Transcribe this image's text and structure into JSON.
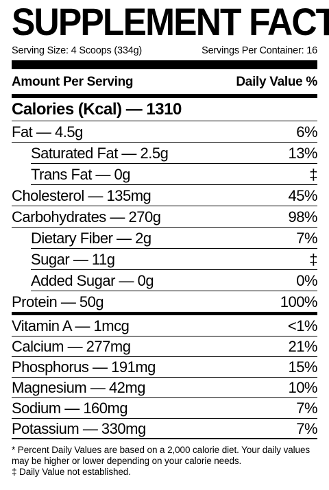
{
  "title": "SUPPLEMENT FACTS",
  "serving_size": "Serving Size: 4 Scoops (334g)",
  "servings_per_container": "Servings Per Container: 16",
  "header": {
    "amount": "Amount Per Serving",
    "daily_value": "Daily Value %"
  },
  "calories": "Calories (Kcal) — 1310",
  "nutrients": [
    {
      "label": "Fat — 4.5g",
      "dv": "6%",
      "sub": [
        {
          "label": "Saturated Fat — 2.5g",
          "dv": "13%"
        },
        {
          "label": "Trans Fat — 0g",
          "dv": "‡"
        }
      ]
    },
    {
      "label": "Cholesterol — 135mg",
      "dv": "45%",
      "sub": []
    },
    {
      "label": "Carbohydrates — 270g",
      "dv": "98%",
      "sub": [
        {
          "label": "Dietary Fiber — 2g",
          "dv": "7%"
        },
        {
          "label": "Sugar — 11g",
          "dv": "‡"
        },
        {
          "label": "Added Sugar — 0g",
          "dv": "0%"
        }
      ]
    },
    {
      "label": "Protein — 50g",
      "dv": "100%",
      "sub": []
    }
  ],
  "minerals": [
    {
      "label": "Vitamin A — 1mcg",
      "dv": "<1%"
    },
    {
      "label": "Calcium — 277mg",
      "dv": "21%"
    },
    {
      "label": "Phosphorus — 191mg",
      "dv": "15%"
    },
    {
      "label": "Magnesium — 42mg",
      "dv": "10%"
    },
    {
      "label": "Sodium — 160mg",
      "dv": "7%"
    },
    {
      "label": "Potassium — 330mg",
      "dv": "7%"
    }
  ],
  "footnotes": [
    "* Percent Daily Values are based on a 2,000 calorie diet. Your daily values may be higher or lower depending on your calorie needs.",
    "‡ Daily Value not established."
  ]
}
